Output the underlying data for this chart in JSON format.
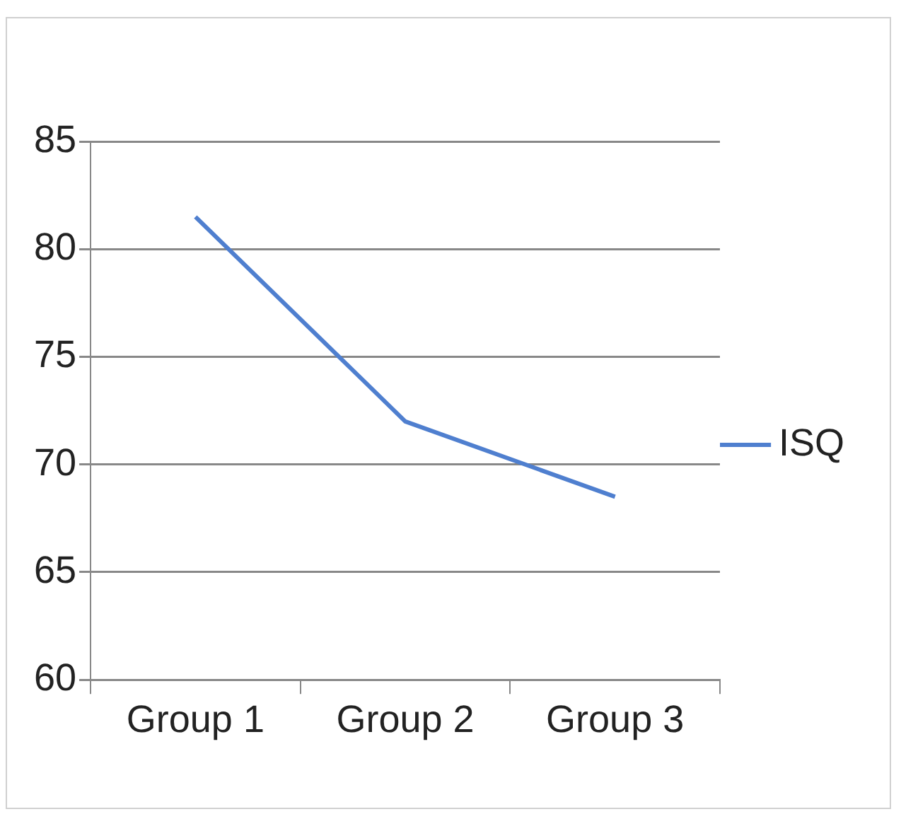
{
  "chart_data": {
    "type": "line",
    "categories": [
      "Group 1",
      "Group 2",
      "Group 3"
    ],
    "series": [
      {
        "name": "ISQ",
        "color": "#4f7fcf",
        "values": [
          81.5,
          72,
          68.5
        ]
      }
    ],
    "ylim": [
      60,
      85
    ],
    "yticks": [
      60,
      65,
      70,
      75,
      80,
      85
    ],
    "grid": "y",
    "legend": "right",
    "marker": "none"
  }
}
